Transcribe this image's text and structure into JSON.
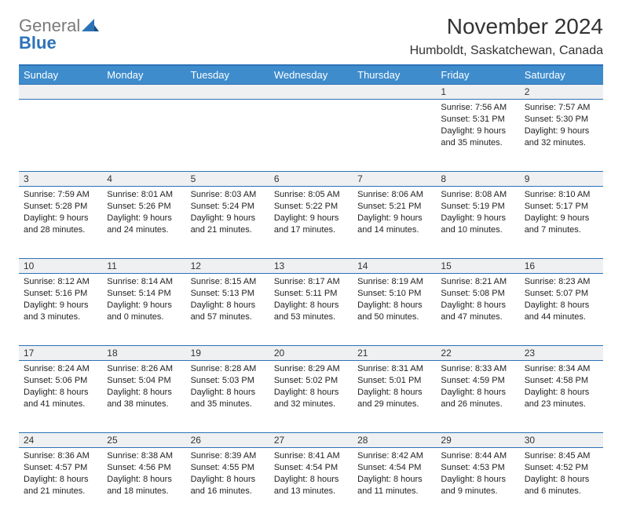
{
  "logo": {
    "wordGray": "General",
    "wordBlue": "Blue"
  },
  "title": "November 2024",
  "subtitle": "Humboldt, Saskatchewan, Canada",
  "colors": {
    "headerBg": "#3e8ccc",
    "headerText": "#ffffff",
    "rowBorder": "#2d72b8",
    "dayStripBg": "#eef0f1",
    "bodyText": "#222222",
    "brandBlue": "#2d72b8",
    "brandGray": "#7a7a7a"
  },
  "layout": {
    "pageWidth": 792,
    "pageHeight": 612,
    "columns": 7,
    "weekRows": 5
  },
  "dayHeaders": [
    "Sunday",
    "Monday",
    "Tuesday",
    "Wednesday",
    "Thursday",
    "Friday",
    "Saturday"
  ],
  "weeks": [
    [
      {
        "n": "",
        "sunrise": "",
        "sunset": "",
        "daylight": ""
      },
      {
        "n": "",
        "sunrise": "",
        "sunset": "",
        "daylight": ""
      },
      {
        "n": "",
        "sunrise": "",
        "sunset": "",
        "daylight": ""
      },
      {
        "n": "",
        "sunrise": "",
        "sunset": "",
        "daylight": ""
      },
      {
        "n": "",
        "sunrise": "",
        "sunset": "",
        "daylight": ""
      },
      {
        "n": "1",
        "sunrise": "Sunrise: 7:56 AM",
        "sunset": "Sunset: 5:31 PM",
        "daylight": "Daylight: 9 hours and 35 minutes."
      },
      {
        "n": "2",
        "sunrise": "Sunrise: 7:57 AM",
        "sunset": "Sunset: 5:30 PM",
        "daylight": "Daylight: 9 hours and 32 minutes."
      }
    ],
    [
      {
        "n": "3",
        "sunrise": "Sunrise: 7:59 AM",
        "sunset": "Sunset: 5:28 PM",
        "daylight": "Daylight: 9 hours and 28 minutes."
      },
      {
        "n": "4",
        "sunrise": "Sunrise: 8:01 AM",
        "sunset": "Sunset: 5:26 PM",
        "daylight": "Daylight: 9 hours and 24 minutes."
      },
      {
        "n": "5",
        "sunrise": "Sunrise: 8:03 AM",
        "sunset": "Sunset: 5:24 PM",
        "daylight": "Daylight: 9 hours and 21 minutes."
      },
      {
        "n": "6",
        "sunrise": "Sunrise: 8:05 AM",
        "sunset": "Sunset: 5:22 PM",
        "daylight": "Daylight: 9 hours and 17 minutes."
      },
      {
        "n": "7",
        "sunrise": "Sunrise: 8:06 AM",
        "sunset": "Sunset: 5:21 PM",
        "daylight": "Daylight: 9 hours and 14 minutes."
      },
      {
        "n": "8",
        "sunrise": "Sunrise: 8:08 AM",
        "sunset": "Sunset: 5:19 PM",
        "daylight": "Daylight: 9 hours and 10 minutes."
      },
      {
        "n": "9",
        "sunrise": "Sunrise: 8:10 AM",
        "sunset": "Sunset: 5:17 PM",
        "daylight": "Daylight: 9 hours and 7 minutes."
      }
    ],
    [
      {
        "n": "10",
        "sunrise": "Sunrise: 8:12 AM",
        "sunset": "Sunset: 5:16 PM",
        "daylight": "Daylight: 9 hours and 3 minutes."
      },
      {
        "n": "11",
        "sunrise": "Sunrise: 8:14 AM",
        "sunset": "Sunset: 5:14 PM",
        "daylight": "Daylight: 9 hours and 0 minutes."
      },
      {
        "n": "12",
        "sunrise": "Sunrise: 8:15 AM",
        "sunset": "Sunset: 5:13 PM",
        "daylight": "Daylight: 8 hours and 57 minutes."
      },
      {
        "n": "13",
        "sunrise": "Sunrise: 8:17 AM",
        "sunset": "Sunset: 5:11 PM",
        "daylight": "Daylight: 8 hours and 53 minutes."
      },
      {
        "n": "14",
        "sunrise": "Sunrise: 8:19 AM",
        "sunset": "Sunset: 5:10 PM",
        "daylight": "Daylight: 8 hours and 50 minutes."
      },
      {
        "n": "15",
        "sunrise": "Sunrise: 8:21 AM",
        "sunset": "Sunset: 5:08 PM",
        "daylight": "Daylight: 8 hours and 47 minutes."
      },
      {
        "n": "16",
        "sunrise": "Sunrise: 8:23 AM",
        "sunset": "Sunset: 5:07 PM",
        "daylight": "Daylight: 8 hours and 44 minutes."
      }
    ],
    [
      {
        "n": "17",
        "sunrise": "Sunrise: 8:24 AM",
        "sunset": "Sunset: 5:06 PM",
        "daylight": "Daylight: 8 hours and 41 minutes."
      },
      {
        "n": "18",
        "sunrise": "Sunrise: 8:26 AM",
        "sunset": "Sunset: 5:04 PM",
        "daylight": "Daylight: 8 hours and 38 minutes."
      },
      {
        "n": "19",
        "sunrise": "Sunrise: 8:28 AM",
        "sunset": "Sunset: 5:03 PM",
        "daylight": "Daylight: 8 hours and 35 minutes."
      },
      {
        "n": "20",
        "sunrise": "Sunrise: 8:29 AM",
        "sunset": "Sunset: 5:02 PM",
        "daylight": "Daylight: 8 hours and 32 minutes."
      },
      {
        "n": "21",
        "sunrise": "Sunrise: 8:31 AM",
        "sunset": "Sunset: 5:01 PM",
        "daylight": "Daylight: 8 hours and 29 minutes."
      },
      {
        "n": "22",
        "sunrise": "Sunrise: 8:33 AM",
        "sunset": "Sunset: 4:59 PM",
        "daylight": "Daylight: 8 hours and 26 minutes."
      },
      {
        "n": "23",
        "sunrise": "Sunrise: 8:34 AM",
        "sunset": "Sunset: 4:58 PM",
        "daylight": "Daylight: 8 hours and 23 minutes."
      }
    ],
    [
      {
        "n": "24",
        "sunrise": "Sunrise: 8:36 AM",
        "sunset": "Sunset: 4:57 PM",
        "daylight": "Daylight: 8 hours and 21 minutes."
      },
      {
        "n": "25",
        "sunrise": "Sunrise: 8:38 AM",
        "sunset": "Sunset: 4:56 PM",
        "daylight": "Daylight: 8 hours and 18 minutes."
      },
      {
        "n": "26",
        "sunrise": "Sunrise: 8:39 AM",
        "sunset": "Sunset: 4:55 PM",
        "daylight": "Daylight: 8 hours and 16 minutes."
      },
      {
        "n": "27",
        "sunrise": "Sunrise: 8:41 AM",
        "sunset": "Sunset: 4:54 PM",
        "daylight": "Daylight: 8 hours and 13 minutes."
      },
      {
        "n": "28",
        "sunrise": "Sunrise: 8:42 AM",
        "sunset": "Sunset: 4:54 PM",
        "daylight": "Daylight: 8 hours and 11 minutes."
      },
      {
        "n": "29",
        "sunrise": "Sunrise: 8:44 AM",
        "sunset": "Sunset: 4:53 PM",
        "daylight": "Daylight: 8 hours and 9 minutes."
      },
      {
        "n": "30",
        "sunrise": "Sunrise: 8:45 AM",
        "sunset": "Sunset: 4:52 PM",
        "daylight": "Daylight: 8 hours and 6 minutes."
      }
    ]
  ]
}
